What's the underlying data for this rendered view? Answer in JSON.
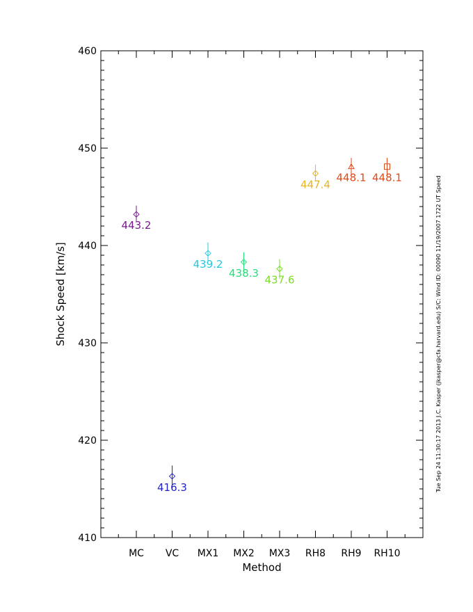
{
  "chart_data": {
    "type": "scatter",
    "xlabel": "Method",
    "ylabel": "Shock Speed [km/s]",
    "ylim": [
      410,
      460
    ],
    "yticks": [
      "410",
      "420",
      "430",
      "440",
      "450",
      "460"
    ],
    "categories": [
      "MC",
      "VC",
      "MX1",
      "MX2",
      "MX3",
      "RH8",
      "RH9",
      "RH10"
    ],
    "points": [
      {
        "category": "MC",
        "value": 443.2,
        "err_low": 442.5,
        "err_high": 444.1,
        "label": "443.2",
        "color": "#7a1a8f",
        "marker": "diamond"
      },
      {
        "category": "VC",
        "value": 416.3,
        "err_low": 415.2,
        "err_high": 417.4,
        "label": "416.3",
        "color": "#2222cc",
        "marker": "diamond"
      },
      {
        "category": "MX1",
        "value": 439.2,
        "err_low": 438.4,
        "err_high": 440.3,
        "label": "439.2",
        "color": "#22c8e0",
        "marker": "diamond"
      },
      {
        "category": "MX2",
        "value": 438.3,
        "err_low": 437.2,
        "err_high": 439.3,
        "label": "438.3",
        "color": "#22e07a",
        "marker": "diamond"
      },
      {
        "category": "MX3",
        "value": 437.6,
        "err_low": 436.6,
        "err_high": 438.6,
        "label": "437.6",
        "color": "#7ae022",
        "marker": "diamond"
      },
      {
        "category": "RH8",
        "value": 447.4,
        "err_low": 446.7,
        "err_high": 448.3,
        "label": "447.4",
        "color": "#e8b420",
        "marker": "diamond"
      },
      {
        "category": "RH9",
        "value": 448.1,
        "err_low": 447.2,
        "err_high": 449.0,
        "label": "448.1",
        "color": "#e04a18",
        "marker": "triangle"
      },
      {
        "category": "RH10",
        "value": 448.1,
        "err_low": 447.2,
        "err_high": 449.0,
        "label": "448.1",
        "color": "#e04a18",
        "marker": "square"
      }
    ]
  },
  "side_note": "Tue Sep 24 11:30:17 2013   J.C. Kasper (jkasper@cfa.harvard.edu)   S/C: Wind ID: 00090 11/19/2007   1722 UT Speed"
}
